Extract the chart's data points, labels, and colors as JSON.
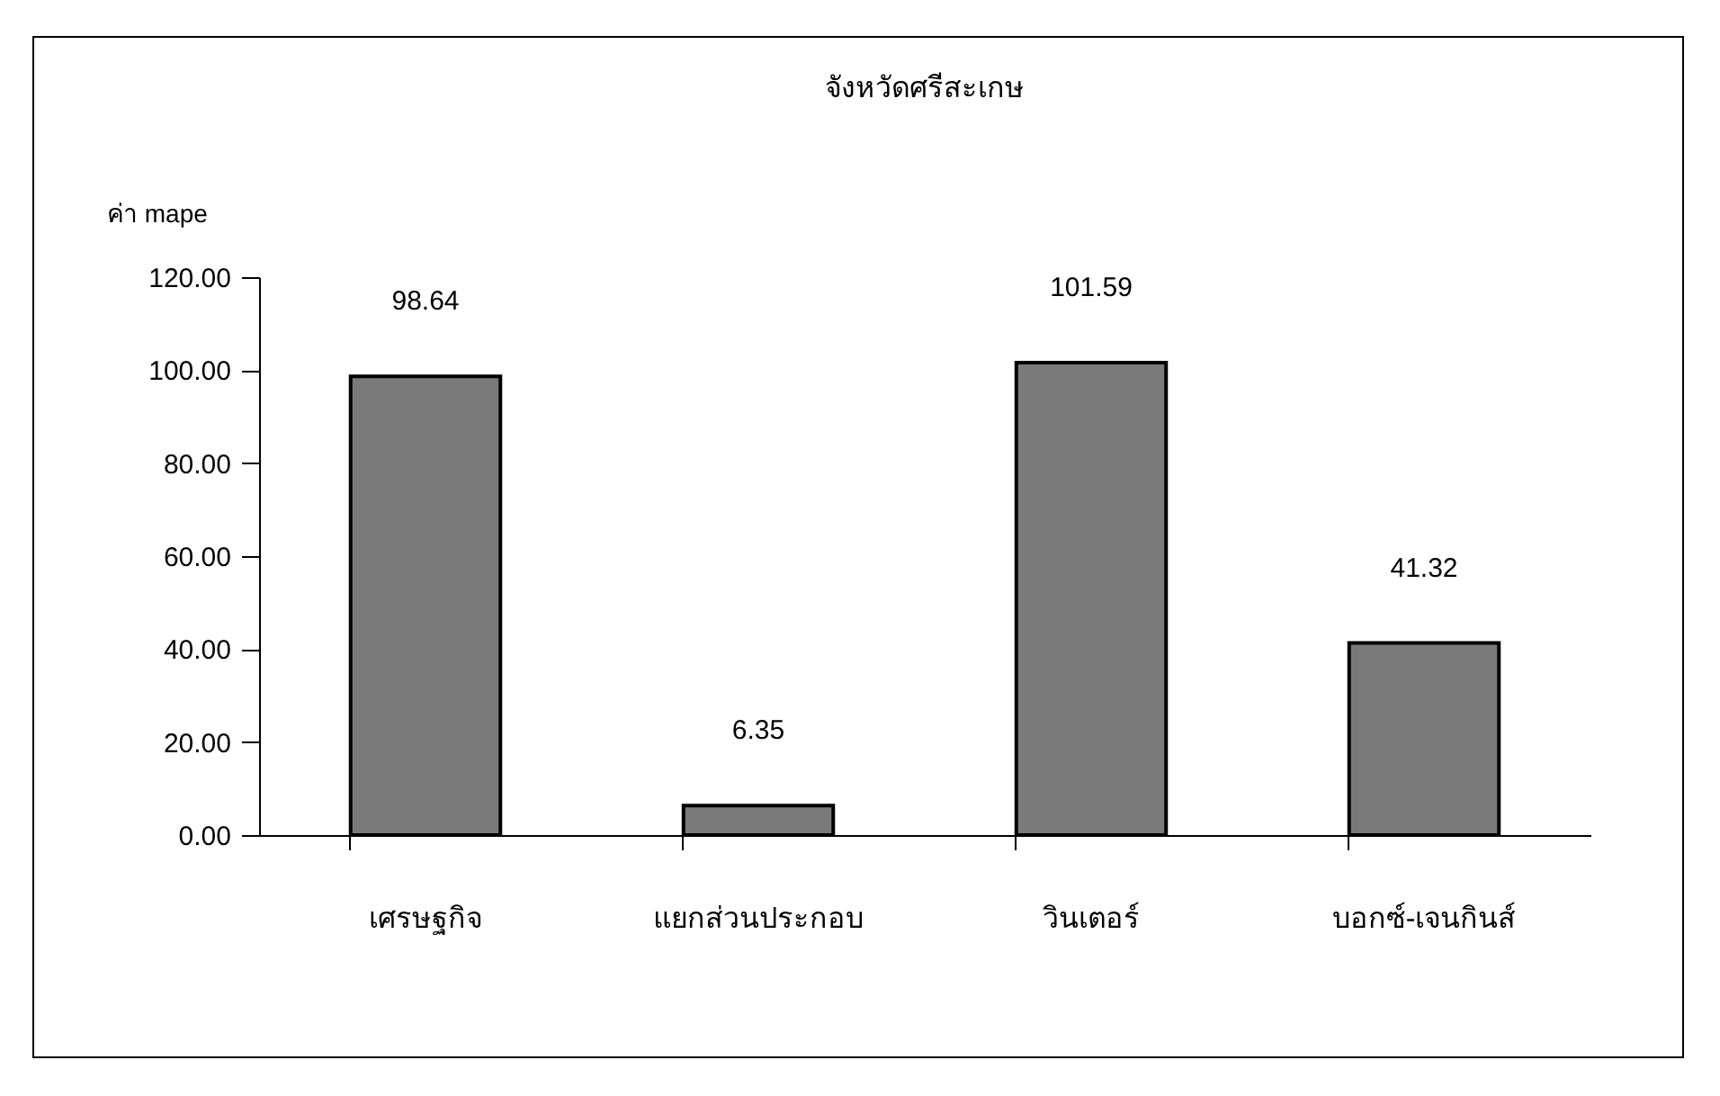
{
  "chart_data": {
    "type": "bar",
    "title": "จังหวัดศรีสะเกษ",
    "ylabel": "ค่า mape",
    "categories": [
      "เศรษฐกิจ",
      "แยกส่วนประกอบ",
      "วินเตอร์",
      "บอกซ์-เจนกินส์"
    ],
    "values": [
      98.64,
      6.35,
      101.59,
      41.32
    ],
    "color": "#7a7a7a",
    "ylim": [
      0,
      120
    ],
    "yticks": [
      {
        "value": 0,
        "label": "0.00"
      },
      {
        "value": 20,
        "label": "20.00"
      },
      {
        "value": 40,
        "label": "40.00"
      },
      {
        "value": 60,
        "label": "60.00"
      },
      {
        "value": 80,
        "label": "80.00"
      },
      {
        "value": 100,
        "label": "100.00"
      },
      {
        "value": 120,
        "label": "120.00"
      }
    ],
    "data_labels": true,
    "grid": false
  }
}
